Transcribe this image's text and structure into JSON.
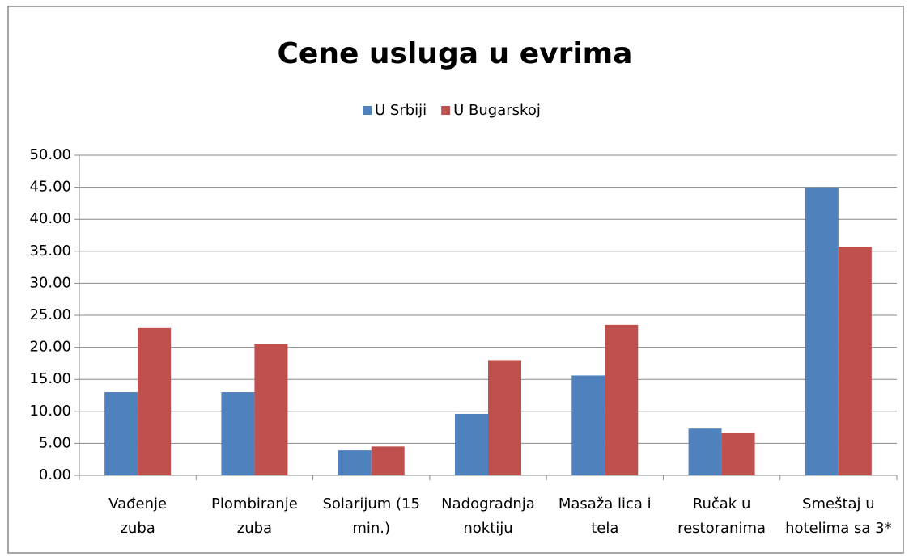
{
  "chart_data": {
    "type": "bar",
    "title": "Cene usluga u evrima",
    "categories": [
      "Vađenje\nzuba",
      "Plombiranje\nzuba",
      "Solarijum (15\nmin.)",
      "Nadogradnja\nnoktiju",
      "Masaža lica i\ntela",
      "Ručak u\nrestoranima",
      "Smeštaj u\nhotelima sa 3*"
    ],
    "series": [
      {
        "name": "U Srbiji",
        "color": "#4f81bd",
        "values": [
          13,
          13,
          3.9,
          9.6,
          15.6,
          7.3,
          45
        ]
      },
      {
        "name": "U Bugarskoj",
        "color": "#c0504d",
        "values": [
          23,
          20.5,
          4.5,
          18,
          23.5,
          6.6,
          35.7
        ]
      }
    ],
    "ylim": [
      0,
      50
    ],
    "yticks": [
      {
        "value": 0,
        "label": "0.00"
      },
      {
        "value": 5,
        "label": "5.00"
      },
      {
        "value": 10,
        "label": "10.00"
      },
      {
        "value": 15,
        "label": "15.00"
      },
      {
        "value": 20,
        "label": "20.00"
      },
      {
        "value": 25,
        "label": "25.00"
      },
      {
        "value": 30,
        "label": "30.00"
      },
      {
        "value": 35,
        "label": "35.00"
      },
      {
        "value": 40,
        "label": "40.00"
      },
      {
        "value": 45,
        "label": "45.00"
      },
      {
        "value": 50,
        "label": "50.00"
      }
    ],
    "grid": true,
    "legend": "top"
  }
}
